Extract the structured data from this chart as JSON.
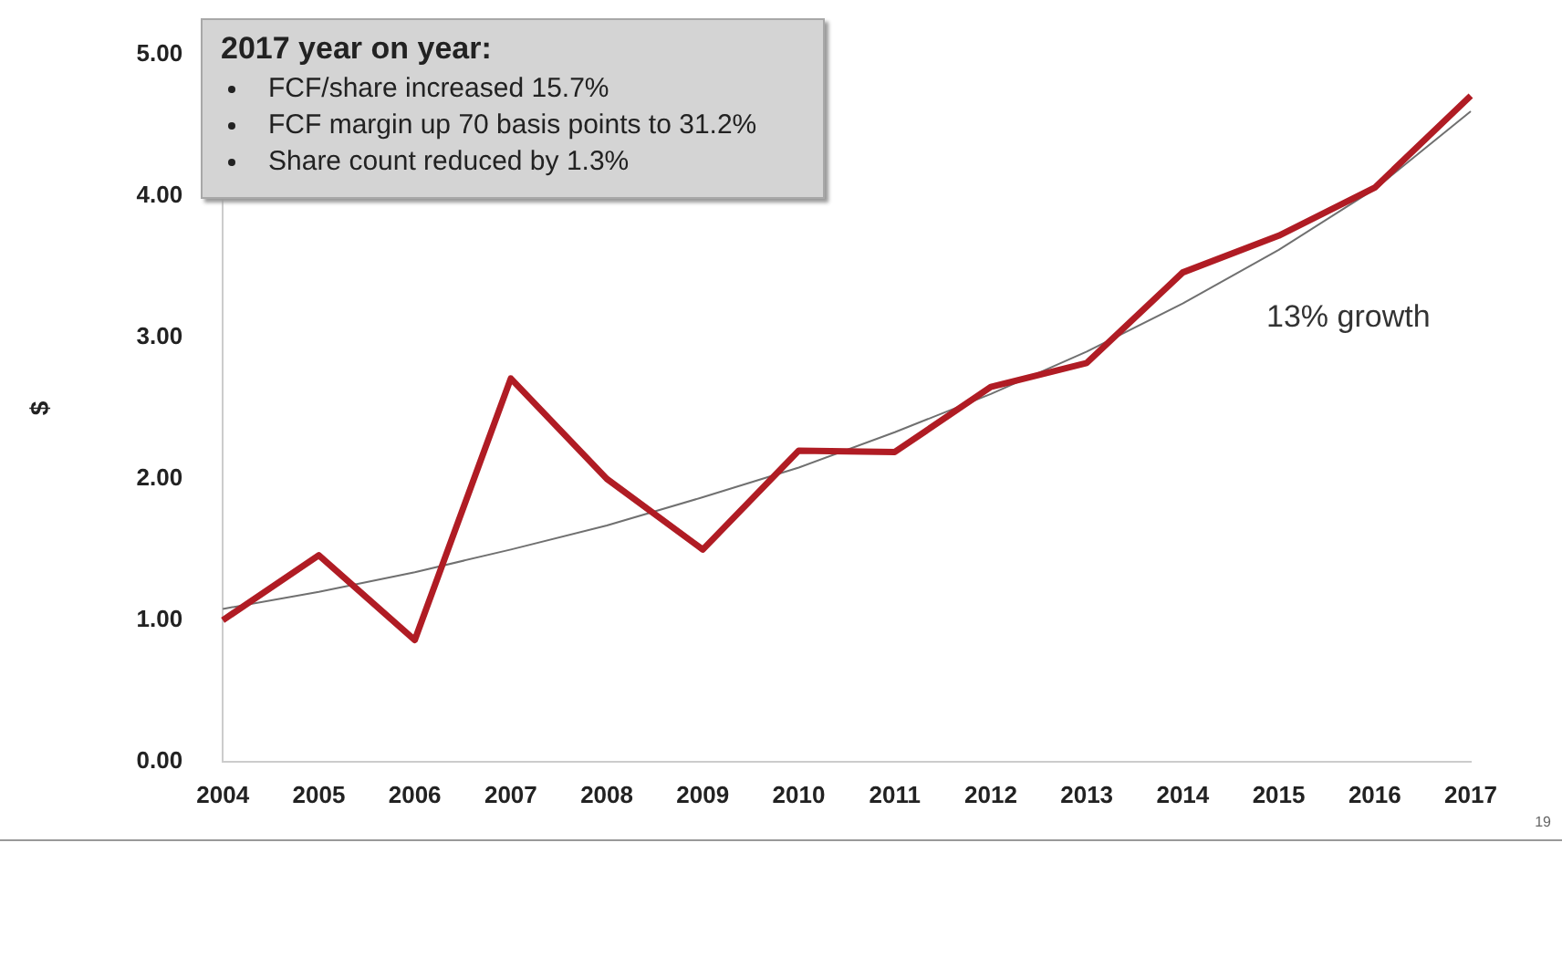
{
  "chart_data": {
    "type": "line",
    "ylabel": "$",
    "categories": [
      "2004",
      "2005",
      "2006",
      "2007",
      "2008",
      "2009",
      "2010",
      "2011",
      "2012",
      "2013",
      "2014",
      "2015",
      "2016",
      "2017"
    ],
    "series": [
      {
        "color": "#b01c24",
        "values": [
          1.0,
          1.46,
          0.86,
          2.71,
          2.0,
          1.5,
          2.2,
          2.19,
          2.65,
          2.82,
          3.46,
          3.72,
          4.06,
          4.71
        ]
      },
      {
        "color": "#707070",
        "values": [
          1.08,
          1.2,
          1.34,
          1.5,
          1.67,
          1.87,
          2.08,
          2.33,
          2.6,
          2.9,
          3.24,
          3.62,
          4.05,
          4.6
        ]
      }
    ],
    "ylim": [
      0,
      5
    ],
    "yticks": [
      {
        "value": 0,
        "label": "0.00"
      },
      {
        "value": 1,
        "label": "1.00"
      },
      {
        "value": 2,
        "label": "2.00"
      },
      {
        "value": 3,
        "label": "3.00"
      },
      {
        "value": 4,
        "label": "4.00"
      },
      {
        "value": 5,
        "label": "5.00"
      }
    ],
    "grid": false,
    "legend": false,
    "marker": "none",
    "line_style": "solid",
    "annotations": [
      "2017 year on year:",
      "FCF/share increased 15.7%",
      "FCF margin up 70 basis points to 31.2%",
      "Share count reduced by 1.3%",
      "13% growth",
      "19"
    ]
  }
}
